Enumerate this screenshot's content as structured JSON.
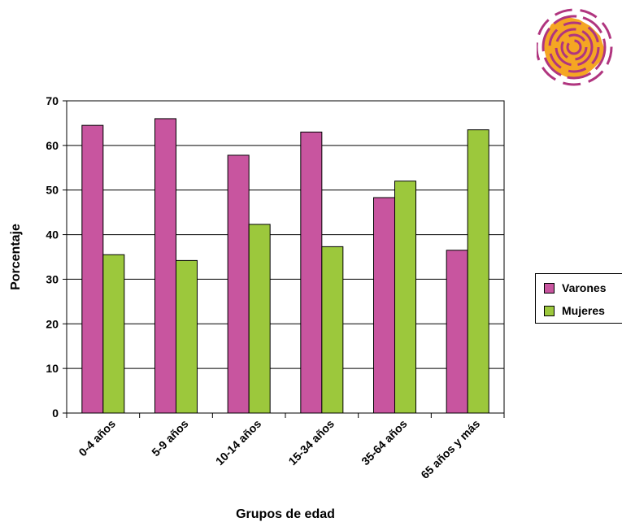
{
  "colors": {
    "varones": "#c8559f",
    "mujeres": "#9cc83c",
    "logo_orange": "#f5a623",
    "logo_purple": "#b0357f"
  },
  "logo": {
    "icon": "concentric-circles-logo-icon"
  },
  "legend": {
    "items": [
      {
        "label": "Varones",
        "color": "#c8559f"
      },
      {
        "label": "Mujeres",
        "color": "#9cc83c"
      }
    ]
  },
  "chart_data": {
    "type": "bar",
    "xlabel": "Grupos de edad",
    "ylabel": "Porcentaje",
    "ylim": [
      0,
      70
    ],
    "yticks": [
      0,
      10,
      20,
      30,
      40,
      50,
      60,
      70
    ],
    "grid": true,
    "legend_position": "right",
    "categories": [
      "0-4 años",
      "5-9 años",
      "10-14 años",
      "15-34 años",
      "35-64 años",
      "65 años y más"
    ],
    "series": [
      {
        "name": "Varones",
        "color": "#c8559f",
        "values": [
          64.5,
          66,
          57.8,
          63,
          48.3,
          36.5
        ]
      },
      {
        "name": "Mujeres",
        "color": "#9cc83c",
        "values": [
          35.5,
          34.2,
          42.3,
          37.3,
          52,
          63.5
        ]
      }
    ]
  }
}
